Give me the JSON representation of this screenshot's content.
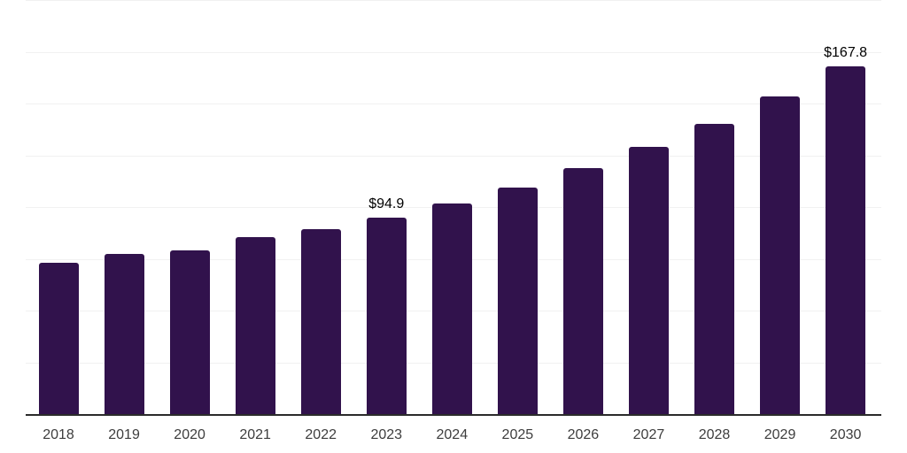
{
  "chart_data": {
    "type": "bar",
    "title": "",
    "xlabel": "",
    "ylabel": "",
    "categories": [
      "2018",
      "2019",
      "2020",
      "2021",
      "2022",
      "2023",
      "2024",
      "2025",
      "2026",
      "2027",
      "2028",
      "2029",
      "2030"
    ],
    "values": [
      73.0,
      77.3,
      79.2,
      85.5,
      89.5,
      94.9,
      101.7,
      109.5,
      119.0,
      129.1,
      140.2,
      153.4,
      167.8
    ],
    "data_labels": {
      "2023": "$94.9",
      "2030": "$167.8"
    },
    "ylim": [
      0,
      200
    ],
    "grid_step": 25,
    "grid": true,
    "legend": false,
    "y_axis_labels_visible": false,
    "colors": {
      "bar": "#31124c",
      "gridline": "#f1f1f1",
      "axis_line": "#2b2b2b",
      "tick_label": "#3d3d3d",
      "value_label": "#000000",
      "background": "#ffffff"
    }
  }
}
